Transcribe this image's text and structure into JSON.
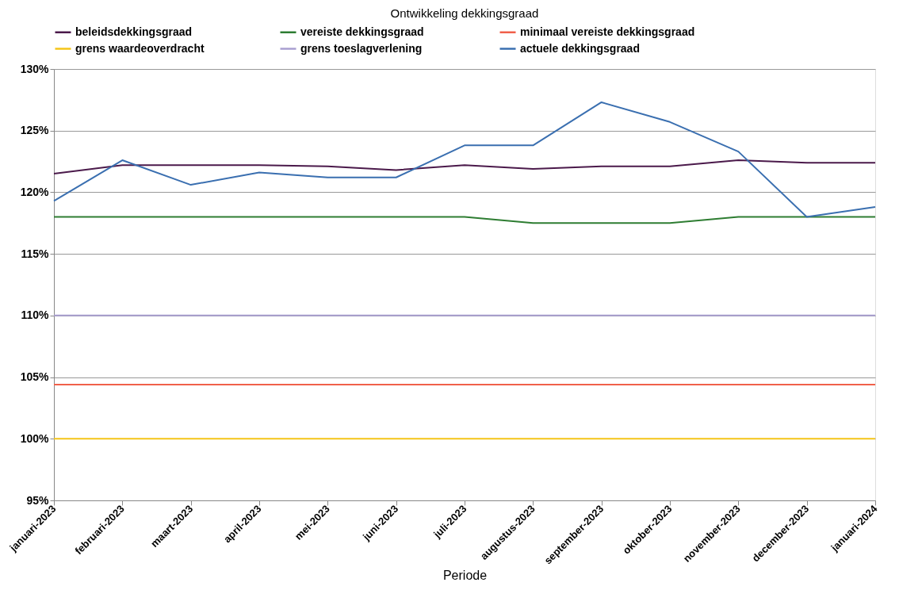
{
  "chart_data": {
    "type": "line",
    "title": "Ontwikkeling dekkingsgraad",
    "xlabel": "Periode",
    "categories": [
      "januari-2023",
      "februari-2023",
      "maart-2023",
      "april-2023",
      "mei-2023",
      "juni-2023",
      "juli-2023",
      "augustus-2023",
      "september-2023",
      "oktober-2023",
      "november-2023",
      "december-2023",
      "januari-2024"
    ],
    "series": [
      {
        "name": "beleidsdekkingsgraad",
        "color": "#4b1a4b",
        "values": [
          121.5,
          122.2,
          122.2,
          122.2,
          122.1,
          121.8,
          122.2,
          121.9,
          122.1,
          122.1,
          122.6,
          122.4,
          122.4
        ]
      },
      {
        "name": "vereiste dekkingsgraad",
        "color": "#2e7d32",
        "values": [
          118,
          118,
          118,
          118,
          118,
          118,
          118,
          117.5,
          117.5,
          117.5,
          118,
          118,
          118
        ]
      },
      {
        "name": "minimaal vereiste dekkingsgraad",
        "color": "#f0604a",
        "values": [
          104.4,
          104.4,
          104.4,
          104.4,
          104.4,
          104.4,
          104.4,
          104.4,
          104.4,
          104.4,
          104.4,
          104.4,
          104.4
        ]
      },
      {
        "name": "grens waardeoverdracht",
        "color": "#f5c518",
        "values": [
          100,
          100,
          100,
          100,
          100,
          100,
          100,
          100,
          100,
          100,
          100,
          100,
          100
        ]
      },
      {
        "name": "grens toeslagverlening",
        "color": "#a99fd0",
        "values": [
          110,
          110,
          110,
          110,
          110,
          110,
          110,
          110,
          110,
          110,
          110,
          110,
          110
        ]
      },
      {
        "name": "actuele dekkingsgraad",
        "color": "#3a6fb0",
        "values": [
          119.3,
          122.6,
          120.6,
          121.6,
          121.2,
          121.2,
          123.8,
          123.8,
          127.3,
          125.7,
          123.3,
          118.0,
          118.8
        ]
      }
    ],
    "ylim": [
      95,
      130
    ],
    "yticks": [
      {
        "value": 95,
        "label": "95%"
      },
      {
        "value": 100,
        "label": "100%"
      },
      {
        "value": 105,
        "label": "105%"
      },
      {
        "value": 110,
        "label": "110%"
      },
      {
        "value": 115,
        "label": "115%"
      },
      {
        "value": 120,
        "label": "120%"
      },
      {
        "value": 125,
        "label": "125%"
      },
      {
        "value": 130,
        "label": "130%"
      }
    ],
    "grid": "y",
    "legend": "top",
    "marker": "none",
    "line_style": "solid"
  }
}
